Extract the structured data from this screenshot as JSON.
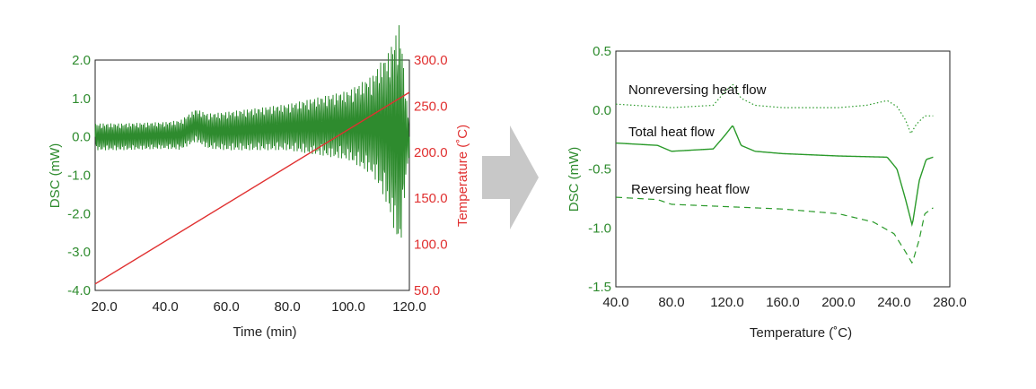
{
  "colors": {
    "green": "#2e8b2e",
    "green_dark": "#2a9a2a",
    "red": "#e03030",
    "arrow": "#c8c8c8",
    "axis": "#000000"
  },
  "chart_data": [
    {
      "type": "line",
      "name": "mdsc-raw",
      "xlabel": "Time (min)",
      "ylabel": "DSC (mW)",
      "y2label": "Temperature (˚C)",
      "xlim": [
        17.0,
        120.0
      ],
      "ylim": [
        -4.0,
        2.0
      ],
      "y2lim": [
        50.0,
        300.0
      ],
      "x_ticks": [
        "20.0",
        "40.0",
        "60.0",
        "80.0",
        "100.0",
        "120.0"
      ],
      "x_tick_values": [
        20,
        40,
        60,
        80,
        100,
        120
      ],
      "y_ticks": [
        "2.0",
        "1.0",
        "0.0",
        "-1.0",
        "-2.0",
        "-3.0",
        "-4.0"
      ],
      "y_tick_values": [
        2,
        1,
        0,
        -1,
        -2,
        -3,
        -4
      ],
      "y2_ticks": [
        "300.0",
        "250.0",
        "200.0",
        "150.0",
        "100.0",
        "50.0"
      ],
      "y2_tick_values": [
        300,
        250,
        200,
        150,
        100,
        50
      ],
      "series": [
        {
          "name": "DSC (mW)",
          "axis": "left",
          "style": "modulated",
          "center": [
            [
              17,
              0.0
            ],
            [
              25,
              0.0
            ],
            [
              45,
              0.05
            ],
            [
              50,
              0.3
            ],
            [
              54,
              0.15
            ],
            [
              60,
              0.15
            ],
            [
              80,
              0.25
            ],
            [
              100,
              0.3
            ],
            [
              110,
              0.3
            ],
            [
              117,
              0.0
            ],
            [
              120,
              0.0
            ]
          ],
          "amplitude": [
            [
              17,
              0.35
            ],
            [
              40,
              0.35
            ],
            [
              60,
              0.5
            ],
            [
              80,
              0.6
            ],
            [
              100,
              0.9
            ],
            [
              108,
              1.3
            ],
            [
              113,
              2.0
            ],
            [
              117,
              3.0
            ],
            [
              119,
              1.0
            ],
            [
              120,
              0.5
            ]
          ]
        },
        {
          "name": "Temperature",
          "axis": "right",
          "points": [
            [
              17.0,
              57.0
            ],
            [
              120.0,
              265.0
            ]
          ]
        }
      ]
    },
    {
      "type": "line",
      "name": "mdsc-separated",
      "xlabel": "Temperature (˚C)",
      "ylabel": "DSC (mW)",
      "xlim": [
        40.0,
        280.0
      ],
      "ylim": [
        -1.5,
        0.5
      ],
      "x_ticks": [
        "40.0",
        "80.0",
        "120.0",
        "160.0",
        "200.0",
        "240.0",
        "280.0"
      ],
      "x_tick_values": [
        40,
        80,
        120,
        160,
        200,
        240,
        280
      ],
      "y_ticks": [
        "0.5",
        "0.0",
        "-0.5",
        "-1.0",
        "-1.5"
      ],
      "y_tick_values": [
        0.5,
        0.0,
        -0.5,
        -1.0,
        -1.5
      ],
      "series": [
        {
          "name": "Nonreversing heat flow",
          "style": "dotted",
          "points": [
            [
              40,
              0.05
            ],
            [
              80,
              0.02
            ],
            [
              110,
              0.04
            ],
            [
              118,
              0.15
            ],
            [
              124,
              0.22
            ],
            [
              130,
              0.1
            ],
            [
              140,
              0.04
            ],
            [
              160,
              0.02
            ],
            [
              200,
              0.02
            ],
            [
              220,
              0.04
            ],
            [
              235,
              0.08
            ],
            [
              242,
              0.03
            ],
            [
              248,
              -0.08
            ],
            [
              252,
              -0.2
            ],
            [
              256,
              -0.12
            ],
            [
              262,
              -0.05
            ],
            [
              268,
              -0.05
            ]
          ]
        },
        {
          "name": "Total heat flow",
          "style": "solid",
          "points": [
            [
              40,
              -0.28
            ],
            [
              70,
              -0.3
            ],
            [
              80,
              -0.35
            ],
            [
              110,
              -0.33
            ],
            [
              118,
              -0.22
            ],
            [
              124,
              -0.13
            ],
            [
              130,
              -0.3
            ],
            [
              140,
              -0.35
            ],
            [
              160,
              -0.37
            ],
            [
              200,
              -0.39
            ],
            [
              235,
              -0.4
            ],
            [
              242,
              -0.5
            ],
            [
              248,
              -0.75
            ],
            [
              253,
              -0.98
            ],
            [
              258,
              -0.6
            ],
            [
              263,
              -0.42
            ],
            [
              268,
              -0.4
            ]
          ]
        },
        {
          "name": "Reversing heat flow",
          "style": "dashed",
          "points": [
            [
              40,
              -0.74
            ],
            [
              70,
              -0.76
            ],
            [
              80,
              -0.8
            ],
            [
              120,
              -0.82
            ],
            [
              160,
              -0.84
            ],
            [
              200,
              -0.88
            ],
            [
              225,
              -0.95
            ],
            [
              240,
              -1.05
            ],
            [
              248,
              -1.2
            ],
            [
              253,
              -1.3
            ],
            [
              258,
              -1.1
            ],
            [
              262,
              -0.88
            ],
            [
              268,
              -0.83
            ]
          ]
        }
      ],
      "annotations": [
        "Nonreversing  heat flow",
        "Total heat flow",
        "Reversing heat flow"
      ]
    }
  ]
}
